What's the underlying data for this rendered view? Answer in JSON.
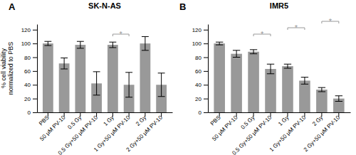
{
  "chart_data": [
    {
      "type": "bar",
      "title": "SK-N-AS",
      "ylabel": "% cell viability\nnormalized to PBS",
      "categories": [
        "PBS",
        "50 μM PV-10",
        "0.5 Gy",
        "0.5 Gy+50 μM PV-10",
        "1 Gy",
        "1 Gy+50 μM PV-10",
        "2 Gy",
        "2 Gy+50 μM PV-10"
      ],
      "values": [
        100,
        71,
        98,
        42,
        98,
        40,
        100,
        40
      ],
      "errors": [
        3,
        8,
        5,
        17,
        4,
        18,
        10,
        17
      ],
      "color": "#999999",
      "ylim": [
        0,
        128
      ],
      "yticks": [
        0,
        20,
        40,
        60,
        80,
        100,
        120
      ],
      "grid": false,
      "annotations": [
        "A"
      ],
      "significance": [
        {
          "categories": [
            4,
            5
          ],
          "label": "*"
        }
      ]
    },
    {
      "type": "bar",
      "title": "IMR5",
      "categories": [
        "PBS",
        "50 μM PV-10",
        "0.5 Gy",
        "0.5 Gy+50 μM PV-10",
        "1 Gy",
        "1 Gy+50 μM PV-10",
        "2 Gy",
        "2 Gy+50 μM PV-10"
      ],
      "values": [
        100,
        85,
        88,
        63,
        67,
        46,
        33,
        20
      ],
      "errors": [
        2,
        5,
        3,
        7,
        3,
        5,
        3,
        4
      ],
      "color": "#999999",
      "ylim": [
        0,
        128
      ],
      "yticks": [
        0,
        20,
        40,
        60,
        80,
        100,
        120
      ],
      "grid": false,
      "annotations": [
        "B"
      ],
      "significance": [
        {
          "categories": [
            2,
            3
          ],
          "label": "*"
        },
        {
          "categories": [
            4,
            5
          ],
          "label": "*"
        },
        {
          "categories": [
            6,
            7
          ],
          "label": "*"
        }
      ]
    }
  ]
}
